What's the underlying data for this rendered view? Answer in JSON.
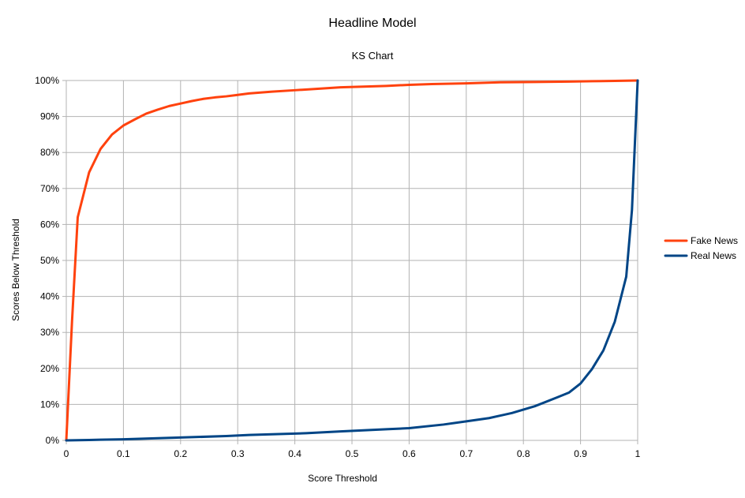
{
  "chart_data": {
    "type": "line",
    "title": "Headline Model",
    "subtitle": "KS Chart",
    "xlabel": "Score Threshold",
    "ylabel": "Scores Below Threshold",
    "xlim": [
      0,
      1
    ],
    "ylim": [
      0,
      100
    ],
    "x_ticks": [
      "0",
      "0.1",
      "0.2",
      "0.3",
      "0.4",
      "0.5",
      "0.6",
      "0.7",
      "0.8",
      "0.9",
      "1"
    ],
    "y_ticks": [
      "0%",
      "10%",
      "20%",
      "30%",
      "40%",
      "50%",
      "60%",
      "70%",
      "80%",
      "90%",
      "100%"
    ],
    "grid": true,
    "legend_position": "right",
    "series": [
      {
        "name": "Fake News",
        "color": "#ff420e",
        "x": [
          0,
          0.01,
          0.02,
          0.04,
          0.06,
          0.08,
          0.1,
          0.12,
          0.14,
          0.16,
          0.18,
          0.2,
          0.22,
          0.24,
          0.26,
          0.28,
          0.3,
          0.32,
          0.36,
          0.4,
          0.44,
          0.48,
          0.52,
          0.56,
          0.6,
          0.64,
          0.7,
          0.76,
          0.82,
          0.88,
          0.92,
          0.96,
          1
        ],
        "values": [
          0,
          33,
          62,
          74.5,
          81,
          85,
          87.5,
          89.2,
          90.8,
          91.9,
          92.9,
          93.6,
          94.3,
          94.9,
          95.3,
          95.6,
          96,
          96.4,
          96.9,
          97.3,
          97.7,
          98.1,
          98.3,
          98.5,
          98.8,
          99,
          99.2,
          99.5,
          99.6,
          99.7,
          99.8,
          99.9,
          100
        ]
      },
      {
        "name": "Real News",
        "color": "#004586",
        "x": [
          0,
          0.04,
          0.06,
          0.1,
          0.16,
          0.22,
          0.28,
          0.32,
          0.36,
          0.42,
          0.48,
          0.52,
          0.56,
          0.6,
          0.66,
          0.7,
          0.74,
          0.78,
          0.82,
          0.86,
          0.88,
          0.9,
          0.92,
          0.94,
          0.96,
          0.98,
          0.99,
          1
        ],
        "values": [
          0,
          0.1,
          0.2,
          0.3,
          0.6,
          0.9,
          1.2,
          1.5,
          1.7,
          2,
          2.5,
          2.8,
          3.1,
          3.4,
          4.4,
          5.3,
          6.2,
          7.6,
          9.5,
          12,
          13.3,
          15.8,
          19.8,
          25,
          33,
          45.5,
          64,
          100
        ]
      }
    ]
  }
}
